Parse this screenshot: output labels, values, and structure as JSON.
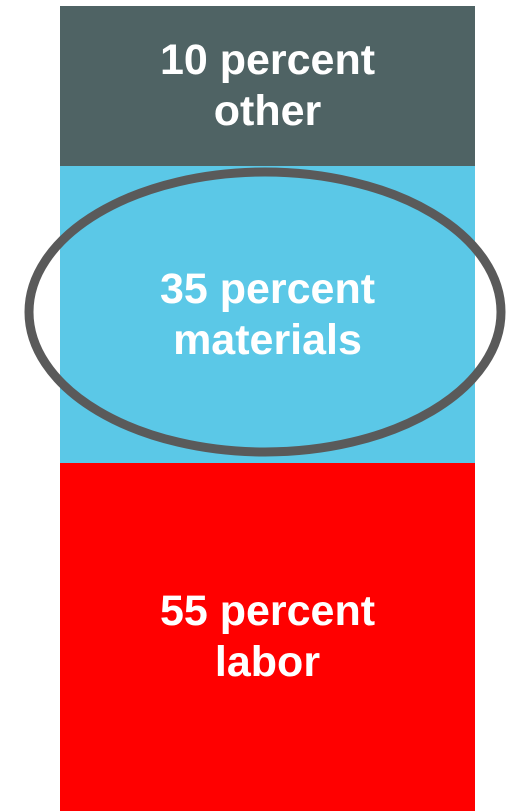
{
  "chart_data": {
    "type": "bar",
    "stacked": true,
    "orientation": "vertical",
    "segments": [
      {
        "value": 10,
        "line1": "10 percent",
        "line2": "other",
        "color": "#4f6364"
      },
      {
        "value": 35,
        "line1": "35 percent",
        "line2": "materials",
        "color": "#5bc8e7",
        "highlighted": true
      },
      {
        "value": 55,
        "line1": "55 percent",
        "line2": "labor",
        "color": "#ff0000"
      }
    ],
    "highlight": {
      "segment": "materials",
      "shape": "ellipse",
      "color": "#5a5a5a"
    },
    "title": "",
    "xlabel": "",
    "ylabel": ""
  }
}
